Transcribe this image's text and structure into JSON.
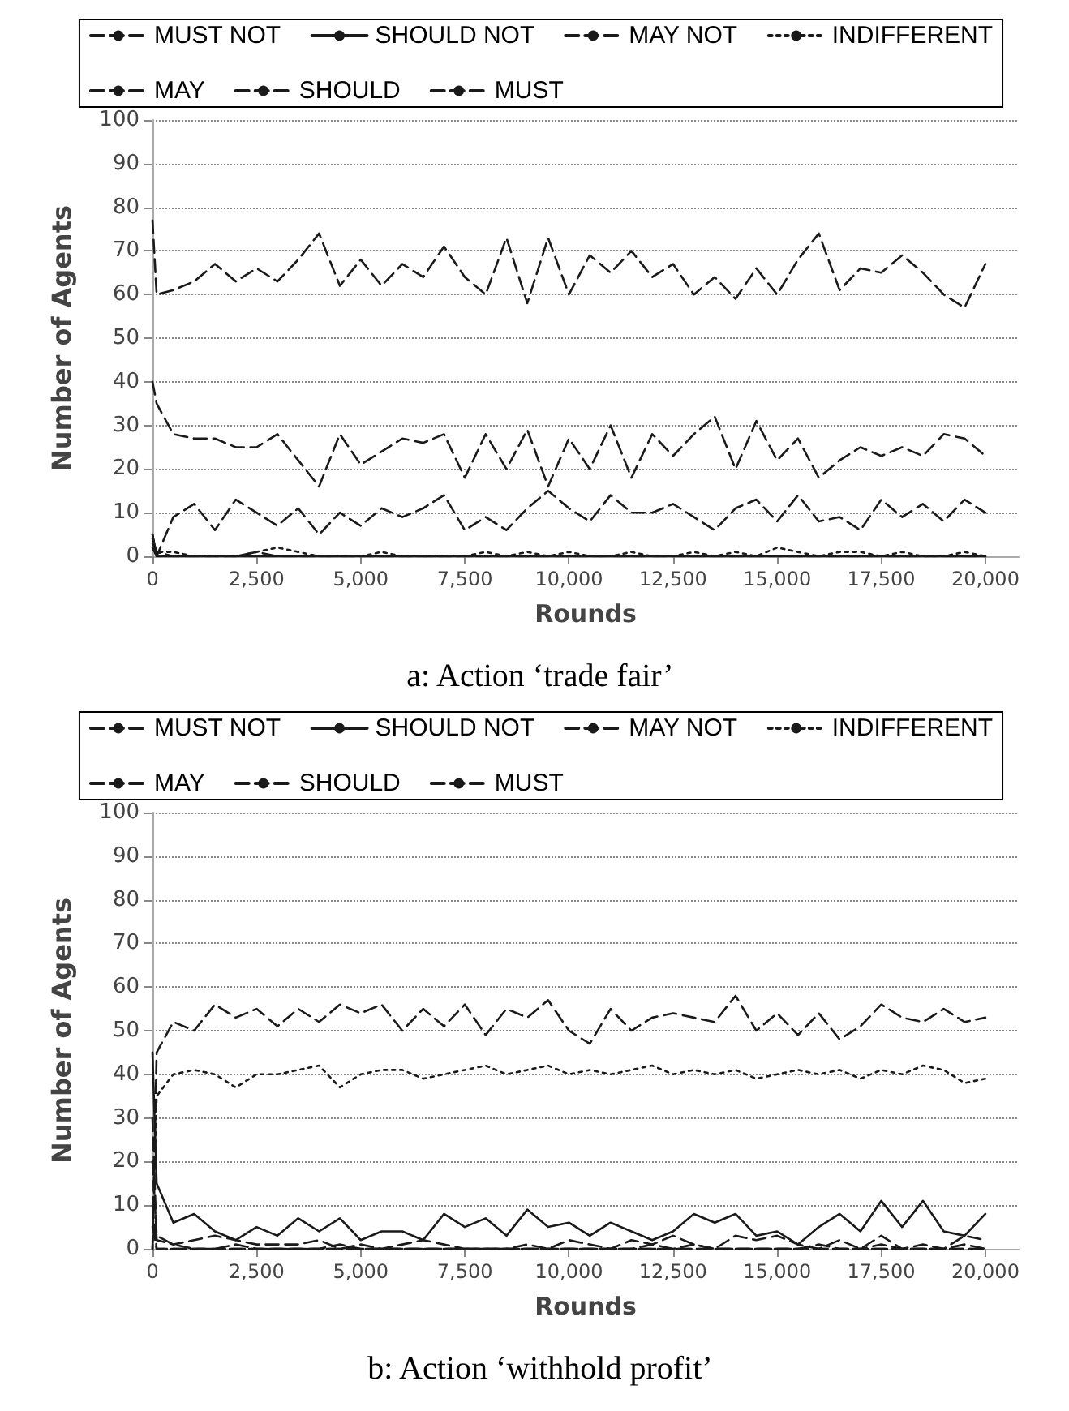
{
  "chart_data": [
    {
      "type": "line",
      "xlabel": "Rounds",
      "ylabel": "Number of Agents",
      "annotations": [
        "a: Action ‘trade fair’"
      ],
      "legend": "top",
      "grid": "y",
      "marker": "none",
      "xlim": [
        0,
        20800
      ],
      "xticks": [
        0,
        {
          "value": 2500,
          "label": "2,500"
        },
        {
          "value": 5000,
          "label": "5,000"
        },
        {
          "value": 7500,
          "label": "7,500"
        },
        {
          "value": 10000,
          "label": "10,000"
        },
        {
          "value": 12500,
          "label": "12,500"
        },
        {
          "value": 15000,
          "label": "15,000"
        },
        {
          "value": 17500,
          "label": "17,500"
        },
        {
          "value": 20000,
          "label": "20,000"
        }
      ],
      "ylim": [
        0,
        100
      ],
      "yticks": [
        0,
        10,
        20,
        30,
        40,
        50,
        60,
        70,
        80,
        90,
        100
      ],
      "x": [
        0,
        100,
        500,
        1000,
        1500,
        2000,
        2500,
        3000,
        3500,
        4000,
        4500,
        5000,
        5500,
        6000,
        6500,
        7000,
        7500,
        8000,
        8500,
        9000,
        9500,
        10000,
        10500,
        11000,
        11500,
        12000,
        12500,
        13000,
        13500,
        14000,
        14500,
        15000,
        15500,
        16000,
        16500,
        17000,
        17500,
        18000,
        18500,
        19000,
        19500,
        20000
      ],
      "series": [
        {
          "name": "MUST NOT",
          "color": "#1a1a1a",
          "line_style": "dashed",
          "values": [
            2,
            0,
            0,
            0,
            0,
            0,
            0,
            0,
            0,
            0,
            0,
            0,
            0,
            0,
            0,
            0,
            0,
            0,
            0,
            0,
            0,
            0,
            0,
            0,
            0,
            0,
            0,
            0,
            0,
            0,
            0,
            0,
            0,
            0,
            0,
            0,
            0,
            0,
            0,
            0,
            0,
            0
          ]
        },
        {
          "name": "SHOULD NOT",
          "color": "#1a1a1a",
          "line_style": "solid",
          "values": [
            5,
            0,
            0,
            0,
            0,
            0,
            0,
            0,
            0,
            0,
            0,
            0,
            0,
            0,
            0,
            0,
            0,
            0,
            0,
            0,
            0,
            0,
            0,
            0,
            0,
            0,
            0,
            0,
            0,
            0,
            0,
            0,
            0,
            0,
            0,
            0,
            0,
            0,
            0,
            0,
            0,
            0
          ]
        },
        {
          "name": "MAY NOT",
          "color": "#1a1a1a",
          "line_style": "dashed",
          "values": [
            3,
            1,
            0,
            0,
            0,
            0,
            1,
            0,
            0,
            0,
            0,
            0,
            0,
            0,
            0,
            0,
            0,
            0,
            0,
            0,
            0,
            0,
            0,
            0,
            0,
            0,
            0,
            0,
            0,
            0,
            0,
            0,
            0,
            0,
            0,
            0,
            0,
            0,
            0,
            0,
            0,
            0
          ]
        },
        {
          "name": "INDIFFERENT",
          "color": "#1a1a1a",
          "line_style": "dotted",
          "values": [
            4,
            1,
            1,
            0,
            0,
            0,
            1,
            2,
            1,
            0,
            0,
            0,
            1,
            0,
            0,
            0,
            0,
            1,
            0,
            1,
            0,
            1,
            0,
            0,
            1,
            0,
            0,
            1,
            0,
            1,
            0,
            2,
            1,
            0,
            1,
            1,
            0,
            1,
            0,
            0,
            1,
            0
          ]
        },
        {
          "name": "MAY",
          "color": "#1a1a1a",
          "line_style": "dashed",
          "values": [
            5,
            0,
            9,
            12,
            6,
            13,
            10,
            7,
            11,
            5,
            10,
            7,
            11,
            9,
            11,
            14,
            6,
            9,
            6,
            11,
            15,
            11,
            8,
            14,
            10,
            10,
            12,
            9,
            6,
            11,
            13,
            8,
            14,
            8,
            9,
            6,
            13,
            9,
            12,
            8,
            13,
            10
          ]
        },
        {
          "name": "SHOULD",
          "color": "#1a1a1a",
          "line_style": "dashed",
          "values": [
            40,
            35,
            28,
            27,
            27,
            25,
            25,
            28,
            22,
            16,
            28,
            21,
            24,
            27,
            26,
            28,
            18,
            28,
            20,
            29,
            16,
            27,
            20,
            30,
            18,
            28,
            23,
            28,
            32,
            20,
            31,
            22,
            27,
            18,
            22,
            25,
            23,
            25,
            23,
            28,
            27,
            23
          ]
        },
        {
          "name": "MUST",
          "color": "#1a1a1a",
          "line_style": "dashed",
          "values": [
            77,
            60,
            61,
            63,
            67,
            63,
            66,
            63,
            68,
            74,
            62,
            68,
            62,
            67,
            64,
            71,
            64,
            60,
            73,
            58,
            73,
            60,
            69,
            65,
            70,
            64,
            67,
            60,
            64,
            59,
            66,
            60,
            68,
            74,
            61,
            66,
            65,
            69,
            65,
            60,
            57,
            67
          ]
        }
      ]
    },
    {
      "type": "line",
      "xlabel": "Rounds",
      "ylabel": "Number of Agents",
      "annotations": [
        "b: Action ‘withhold profit’"
      ],
      "legend": "top",
      "grid": "y",
      "marker": "none",
      "xlim": [
        0,
        20800
      ],
      "xticks": [
        0,
        {
          "value": 2500,
          "label": "2,500"
        },
        {
          "value": 5000,
          "label": "5,000"
        },
        {
          "value": 7500,
          "label": "7,500"
        },
        {
          "value": 10000,
          "label": "10,000"
        },
        {
          "value": 12500,
          "label": "12,500"
        },
        {
          "value": 15000,
          "label": "15,000"
        },
        {
          "value": 17500,
          "label": "17,500"
        },
        {
          "value": 20000,
          "label": "20,000"
        }
      ],
      "ylim": [
        0,
        100
      ],
      "yticks": [
        0,
        10,
        20,
        30,
        40,
        50,
        60,
        70,
        80,
        90,
        100
      ],
      "x": [
        0,
        100,
        500,
        1000,
        1500,
        2000,
        2500,
        3000,
        3500,
        4000,
        4500,
        5000,
        5500,
        6000,
        6500,
        7000,
        7500,
        8000,
        8500,
        9000,
        9500,
        10000,
        10500,
        11000,
        11500,
        12000,
        12500,
        13000,
        13500,
        14000,
        14500,
        15000,
        15500,
        16000,
        16500,
        17000,
        17500,
        18000,
        18500,
        19000,
        19500,
        20000
      ],
      "series": [
        {
          "name": "MUST NOT",
          "color": "#1a1a1a",
          "line_style": "dashed",
          "values": [
            0,
            45,
            52,
            50,
            56,
            53,
            55,
            51,
            55,
            52,
            56,
            54,
            56,
            50,
            55,
            51,
            56,
            49,
            55,
            53,
            57,
            50,
            47,
            55,
            50,
            53,
            54,
            53,
            52,
            58,
            50,
            54,
            49,
            54,
            48,
            51,
            56,
            53,
            52,
            55,
            52,
            53
          ]
        },
        {
          "name": "SHOULD NOT",
          "color": "#1a1a1a",
          "line_style": "solid",
          "values": [
            45,
            15,
            6,
            8,
            4,
            2,
            5,
            3,
            7,
            4,
            7,
            2,
            4,
            4,
            2,
            8,
            5,
            7,
            3,
            9,
            5,
            6,
            3,
            6,
            4,
            2,
            4,
            8,
            6,
            8,
            3,
            4,
            1,
            5,
            8,
            4,
            11,
            5,
            11,
            4,
            3,
            8
          ]
        },
        {
          "name": "MAY NOT",
          "color": "#1a1a1a",
          "line_style": "dashed",
          "values": [
            20,
            3,
            1,
            0,
            0,
            1,
            0,
            0,
            0,
            0,
            1,
            0,
            0,
            0,
            0,
            0,
            0,
            0,
            0,
            0,
            0,
            0,
            0,
            0,
            0,
            0,
            0,
            1,
            0,
            0,
            0,
            0,
            0,
            1,
            0,
            0,
            0,
            0,
            0,
            0,
            1,
            0
          ]
        },
        {
          "name": "INDIFFERENT",
          "color": "#1a1a1a",
          "line_style": "dotted",
          "values": [
            0,
            35,
            40,
            41,
            40,
            37,
            40,
            40,
            41,
            42,
            37,
            40,
            41,
            41,
            39,
            40,
            41,
            42,
            40,
            41,
            42,
            40,
            41,
            40,
            41,
            42,
            40,
            41,
            40,
            41,
            39,
            40,
            41,
            40,
            41,
            39,
            41,
            40,
            42,
            41,
            38,
            39
          ]
        },
        {
          "name": "MAY",
          "color": "#1a1a1a",
          "line_style": "dashed",
          "values": [
            30,
            2,
            1,
            2,
            3,
            2,
            1,
            1,
            1,
            2,
            0,
            1,
            0,
            1,
            2,
            1,
            0,
            0,
            0,
            1,
            0,
            2,
            1,
            0,
            2,
            1,
            3,
            1,
            0,
            3,
            2,
            3,
            1,
            0,
            2,
            0,
            3,
            0,
            1,
            0,
            3,
            2
          ]
        },
        {
          "name": "SHOULD",
          "color": "#1a1a1a",
          "line_style": "dashed",
          "values": [
            10,
            0,
            0,
            0,
            0,
            0,
            0,
            0,
            0,
            0,
            0,
            0,
            0,
            0,
            0,
            0,
            0,
            0,
            0,
            0,
            0,
            0,
            0,
            0,
            0,
            0,
            0,
            0,
            0,
            0,
            0,
            0,
            0,
            0,
            0,
            0,
            0,
            0,
            0,
            0,
            0,
            0
          ]
        },
        {
          "name": "MUST",
          "color": "#1a1a1a",
          "line_style": "dashed",
          "values": [
            5,
            0,
            0,
            0,
            0,
            0,
            0,
            0,
            0,
            0,
            0,
            0,
            0,
            0,
            0,
            0,
            0,
            0,
            0,
            0,
            0,
            0,
            0,
            0,
            0,
            1,
            0,
            0,
            0,
            0,
            0,
            0,
            0,
            0,
            0,
            0,
            1,
            0,
            0,
            0,
            0,
            0
          ]
        }
      ]
    }
  ]
}
